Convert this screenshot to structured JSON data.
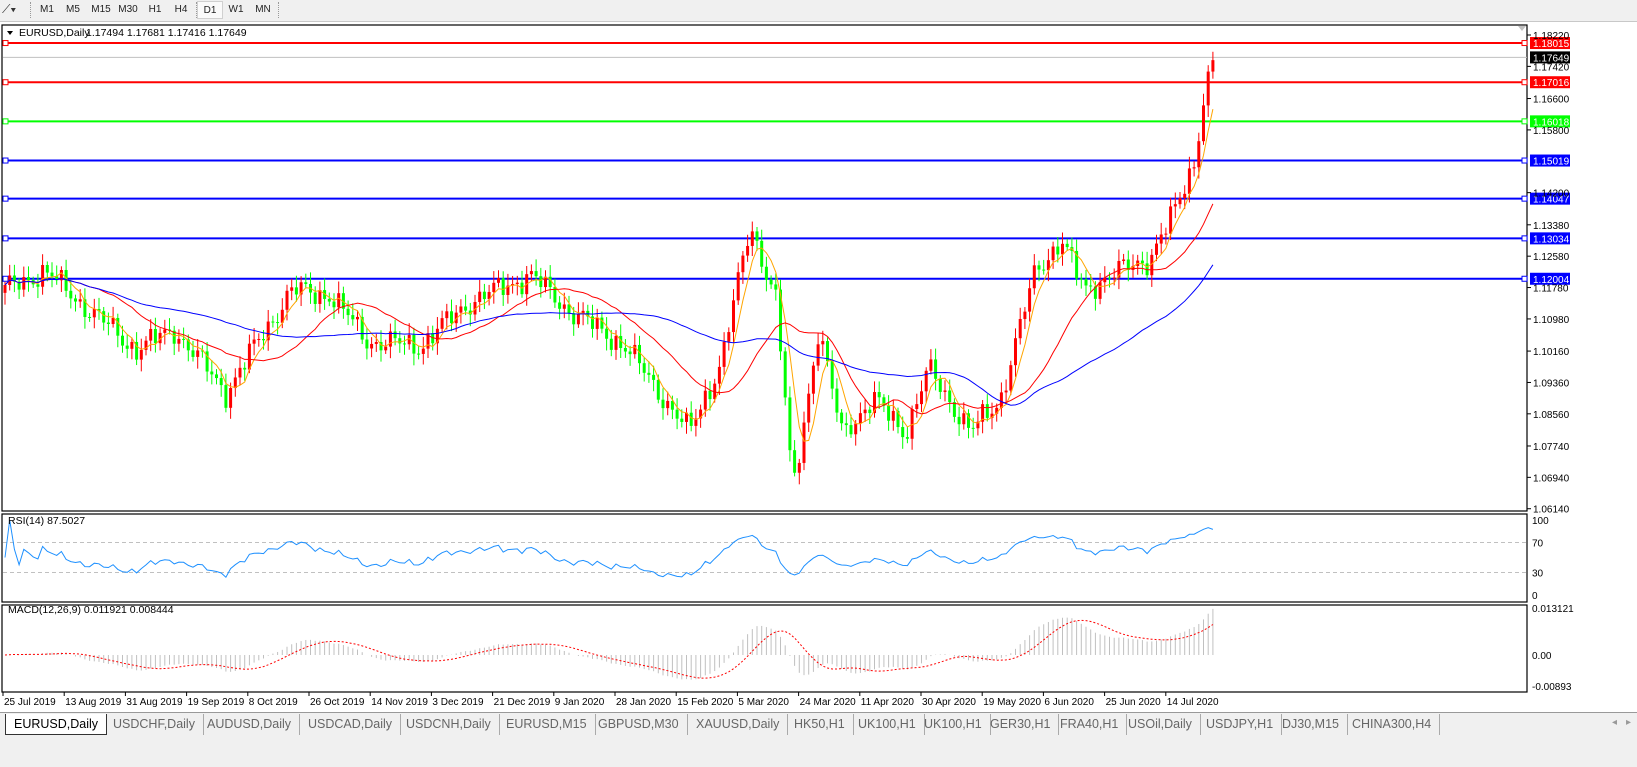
{
  "toolbar": {
    "tool_icon": "line-tools-icon",
    "timeframes": [
      "M1",
      "M5",
      "M15",
      "M30",
      "H1",
      "H4",
      "D1",
      "W1",
      "MN"
    ],
    "active_timeframe": "D1"
  },
  "chart": {
    "symbol_label": "EURUSD,Daily",
    "ohlc": "1.17494 1.17681 1.17416 1.17649",
    "bull_color": "#ff0000",
    "bear_color": "#00ff00",
    "current_price": "1.17649",
    "horizontal_lines": [
      {
        "price": "1.18015",
        "color": "#ff0000"
      },
      {
        "price": "1.17016",
        "color": "#ff0000"
      },
      {
        "price": "1.16018",
        "color": "#00ff00"
      },
      {
        "price": "1.15019",
        "color": "#0000ff"
      },
      {
        "price": "1.14047",
        "color": "#0000ff"
      },
      {
        "price": "1.13034",
        "color": "#0000ff"
      },
      {
        "price": "1.12004",
        "color": "#0000ff"
      }
    ],
    "moving_average_colors": {
      "fast": "#ffa500",
      "medium": "#ff0000",
      "slow": "#0000ff"
    }
  },
  "chart_data": {
    "type": "candlestick",
    "symbol": "EURUSD",
    "timeframe": "Daily",
    "price_ticks": [
      "1.18220",
      "1.17420",
      "1.16600",
      "1.15800",
      "1.14200",
      "1.13380",
      "1.12580",
      "1.11780",
      "1.10980",
      "1.10160",
      "1.09360",
      "1.08560",
      "1.07740",
      "1.06940",
      "1.06140"
    ],
    "ylim": [
      1.0614,
      1.1822
    ],
    "date_labels": [
      "25 Jul 2019",
      "13 Aug 2019",
      "31 Aug 2019",
      "19 Sep 2019",
      "8 Oct 2019",
      "26 Oct 2019",
      "14 Nov 2019",
      "3 Dec 2019",
      "21 Dec 2019",
      "9 Jan 2020",
      "28 Jan 2020",
      "15 Feb 2020",
      "5 Mar 2020",
      "24 Mar 2020",
      "11 Apr 2020",
      "30 Apr 2020",
      "19 May 2020",
      "6 Jun 2020",
      "25 Jun 2020",
      "14 Jul 2020"
    ],
    "close_path": [
      [
        "2019-07-25",
        1.117
      ],
      [
        "2019-08-07",
        1.122
      ],
      [
        "2019-08-18",
        1.114
      ],
      [
        "2019-09-04",
        1.102
      ],
      [
        "2019-09-16",
        1.107
      ],
      [
        "2019-10-02",
        1.091
      ],
      [
        "2019-10-11",
        1.103
      ],
      [
        "2019-10-22",
        1.117
      ],
      [
        "2019-11-03",
        1.116
      ],
      [
        "2019-11-15",
        1.104
      ],
      [
        "2019-12-01",
        1.103
      ],
      [
        "2019-12-16",
        1.114
      ],
      [
        "2020-01-04",
        1.121
      ],
      [
        "2020-01-16",
        1.112
      ],
      [
        "2020-02-02",
        1.103
      ],
      [
        "2020-02-22",
        1.081
      ],
      [
        "2020-03-03",
        1.099
      ],
      [
        "2020-03-12",
        1.134
      ],
      [
        "2020-03-20",
        1.114
      ],
      [
        "2020-03-25",
        1.066
      ],
      [
        "2020-04-02",
        1.107
      ],
      [
        "2020-04-09",
        1.081
      ],
      [
        "2020-04-19",
        1.089
      ],
      [
        "2020-04-29",
        1.081
      ],
      [
        "2020-05-06",
        1.097
      ],
      [
        "2020-05-19",
        1.081
      ],
      [
        "2020-05-28",
        1.089
      ],
      [
        "2020-06-08",
        1.122
      ],
      [
        "2020-06-16",
        1.13
      ],
      [
        "2020-06-23",
        1.117
      ],
      [
        "2020-07-01",
        1.121
      ],
      [
        "2020-07-13",
        1.125
      ],
      [
        "2020-07-21",
        1.137
      ],
      [
        "2020-07-27",
        1.15
      ],
      [
        "2020-07-30",
        1.166
      ],
      [
        "2020-08-02",
        1.17649
      ]
    ],
    "rsi": {
      "label": "RSI(14) 87.5027",
      "levels": [
        70,
        30
      ],
      "ticks": [
        "100",
        "70",
        "30",
        "0"
      ],
      "line_color": "#1e90ff"
    },
    "macd": {
      "label": "MACD(12,26,9) 0.011921 0.008444",
      "ticks": [
        "0.013121",
        "0.00",
        "-0.00893"
      ],
      "ylim": [
        -0.00893,
        0.013121
      ],
      "histogram_color": "#c0c0c0",
      "signal_color": "#ff0000"
    }
  },
  "tabs": {
    "items": [
      "EURUSD,Daily",
      "USDCHF,Daily",
      "AUDUSD,Daily",
      "USDCAD,Daily",
      "USDCNH,Daily",
      "EURUSD,M15",
      "GBPUSD,M30",
      "XAUUSD,Daily",
      "HK50,H1",
      "UK100,H1",
      "UK100,H1",
      "GER30,H1",
      "FRA40,H1",
      "USOil,Daily",
      "USDJPY,H1",
      "DJ30,M15",
      "CHINA300,H4"
    ],
    "active": 0,
    "scroll_left": "◂",
    "scroll_right": "▸"
  }
}
